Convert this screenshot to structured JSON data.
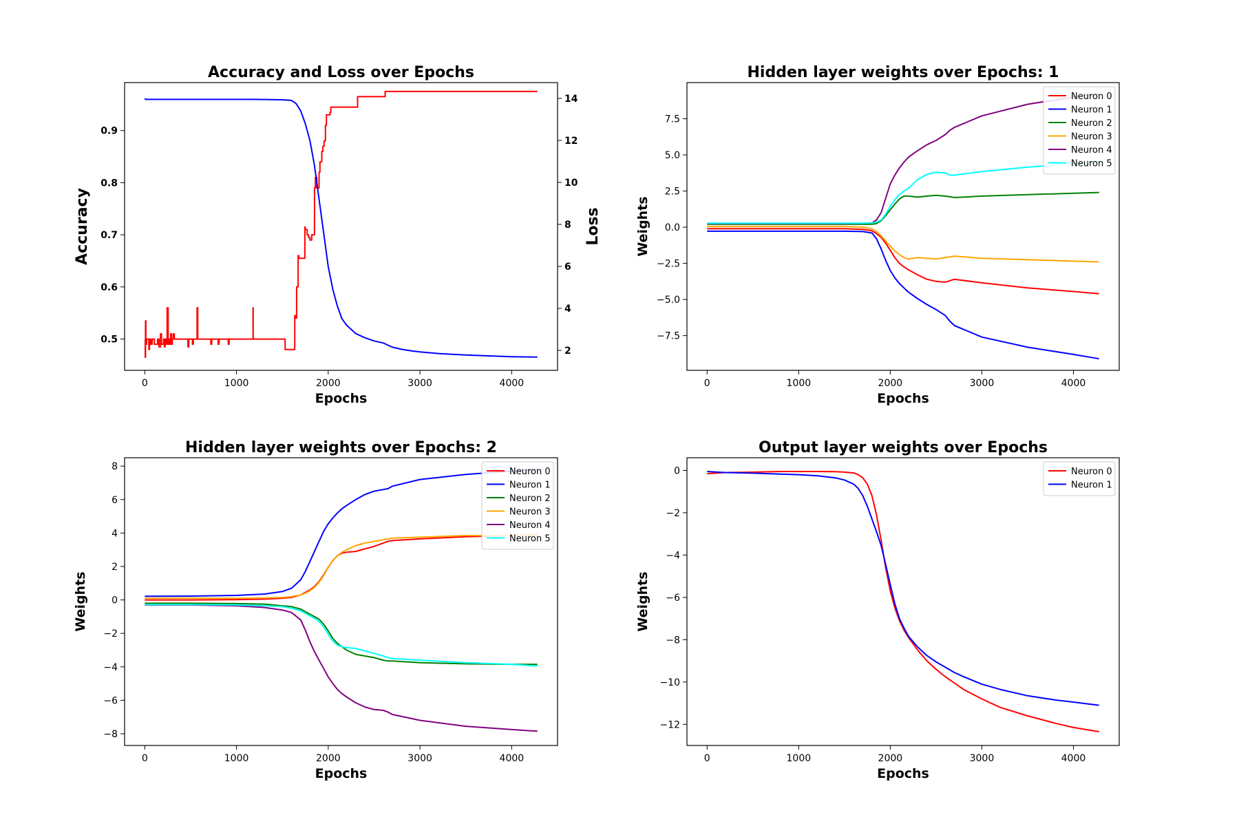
{
  "chart_data": [
    {
      "type": "line",
      "title": "Accuracy and Loss over Epochs",
      "xlabel": "Epochs",
      "ylabel": "Accuracy",
      "ylabel_right": "Loss",
      "xlim": [
        -220,
        4500
      ],
      "ylim": [
        0.44,
        0.992
      ],
      "ylim_right": [
        1.05,
        14.75
      ],
      "xticks": [
        0,
        1000,
        2000,
        3000,
        4000
      ],
      "yticks": [
        0.5,
        0.6,
        0.7,
        0.8,
        0.9
      ],
      "yticks_right": [
        2,
        4,
        6,
        8,
        10,
        12,
        14
      ],
      "grid": false,
      "legend": "none",
      "colors": {
        "left_axis": "#ff0000",
        "right_axis": "#0000ff"
      },
      "series": [
        {
          "name": "Accuracy",
          "axis": "left",
          "color": "#ff0000",
          "step": true,
          "x": [
            0,
            5,
            8,
            12,
            20,
            45,
            52,
            65,
            80,
            105,
            140,
            155,
            172,
            182,
            205,
            214,
            222,
            232,
            244,
            255,
            265,
            278,
            282,
            290,
            300,
            310,
            322,
            470,
            480,
            520,
            530,
            570,
            578,
            592,
            720,
            730,
            800,
            810,
            910,
            920,
            1180,
            1182,
            1188,
            1195,
            1530,
            1535,
            1635,
            1642,
            1655,
            1672,
            1680,
            1745,
            1750,
            1770,
            1785,
            1800,
            1820,
            1850,
            1860,
            1875,
            1900,
            1910,
            1930,
            1942,
            1955,
            1970,
            1980,
            2020,
            2028,
            2068,
            2080,
            2320,
            2330,
            2620,
            2630,
            4280
          ],
          "values": [
            0.5,
            0.465,
            0.535,
            0.49,
            0.5,
            0.48,
            0.5,
            0.49,
            0.5,
            0.49,
            0.5,
            0.485,
            0.51,
            0.49,
            0.5,
            0.485,
            0.5,
            0.49,
            0.56,
            0.49,
            0.5,
            0.49,
            0.51,
            0.49,
            0.5,
            0.51,
            0.5,
            0.485,
            0.5,
            0.49,
            0.5,
            0.56,
            0.5,
            0.5,
            0.49,
            0.5,
            0.49,
            0.5,
            0.49,
            0.5,
            0.56,
            0.5,
            0.5,
            0.5,
            0.48,
            0.48,
            0.545,
            0.54,
            0.6,
            0.66,
            0.655,
            0.715,
            0.71,
            0.7,
            0.695,
            0.69,
            0.7,
            0.79,
            0.81,
            0.79,
            0.82,
            0.84,
            0.86,
            0.87,
            0.88,
            0.91,
            0.93,
            0.935,
            0.945,
            0.945,
            0.945,
            0.965,
            0.965,
            0.975,
            0.975,
            0.975
          ]
        },
        {
          "name": "Loss",
          "axis": "right",
          "color": "#0000ff",
          "x": [
            0,
            10,
            30,
            300,
            800,
            1200,
            1500,
            1600,
            1650,
            1700,
            1750,
            1800,
            1850,
            1900,
            1950,
            2000,
            2050,
            2100,
            2150,
            2200,
            2300,
            2400,
            2500,
            2600,
            2650,
            2700,
            2800,
            2900,
            3000,
            3200,
            3500,
            3800,
            4000,
            4280
          ],
          "values": [
            14.0,
            13.95,
            13.95,
            13.95,
            13.95,
            13.95,
            13.93,
            13.9,
            13.75,
            13.4,
            12.8,
            12.0,
            10.8,
            9.2,
            7.6,
            6.0,
            4.9,
            4.1,
            3.5,
            3.2,
            2.8,
            2.6,
            2.45,
            2.35,
            2.25,
            2.15,
            2.05,
            1.98,
            1.93,
            1.85,
            1.78,
            1.73,
            1.7,
            1.68
          ]
        }
      ]
    },
    {
      "type": "line",
      "title": "Hidden layer weights over Epochs: 1",
      "xlabel": "Epochs",
      "ylabel": "Weights",
      "xlim": [
        -220,
        4500
      ],
      "ylim": [
        -9.9,
        10.0
      ],
      "xticks": [
        0,
        1000,
        2000,
        3000,
        4000
      ],
      "yticks": [
        -7.5,
        -5.0,
        -2.5,
        0.0,
        2.5,
        5.0,
        7.5
      ],
      "ytick_labels": [
        "−7.5",
        "−5.0",
        "−2.5",
        "0.0",
        "2.5",
        "5.0",
        "7.5"
      ],
      "grid": false,
      "legend": "top-right",
      "x": [
        0,
        1000,
        1500,
        1700,
        1800,
        1850,
        1900,
        1950,
        2000,
        2050,
        2100,
        2150,
        2200,
        2300,
        2400,
        2500,
        2600,
        2650,
        2700,
        3000,
        3500,
        4000,
        4280
      ],
      "series": [
        {
          "name": "Neuron 0",
          "color": "#ff0000",
          "values": [
            -0.1,
            -0.1,
            -0.1,
            -0.15,
            -0.25,
            -0.45,
            -0.7,
            -1.1,
            -1.6,
            -2.1,
            -2.5,
            -2.75,
            -2.95,
            -3.3,
            -3.6,
            -3.75,
            -3.8,
            -3.7,
            -3.6,
            -3.85,
            -4.2,
            -4.45,
            -4.6
          ]
        },
        {
          "name": "Neuron 1",
          "color": "#0000ff",
          "values": [
            -0.28,
            -0.28,
            -0.28,
            -0.3,
            -0.4,
            -0.8,
            -1.5,
            -2.3,
            -3.0,
            -3.5,
            -3.9,
            -4.2,
            -4.5,
            -4.95,
            -5.35,
            -5.7,
            -6.1,
            -6.5,
            -6.8,
            -7.6,
            -8.3,
            -8.8,
            -9.1
          ]
        },
        {
          "name": "Neuron 2",
          "color": "#008000",
          "values": [
            0.2,
            0.2,
            0.2,
            0.2,
            0.2,
            0.25,
            0.45,
            0.8,
            1.2,
            1.6,
            1.95,
            2.15,
            2.15,
            2.08,
            2.15,
            2.2,
            2.15,
            2.1,
            2.05,
            2.15,
            2.25,
            2.35,
            2.4
          ]
        },
        {
          "name": "Neuron 3",
          "color": "#ffa500",
          "values": [
            0.05,
            0.05,
            0.05,
            0.0,
            -0.1,
            -0.3,
            -0.6,
            -0.95,
            -1.3,
            -1.65,
            -1.9,
            -2.1,
            -2.2,
            -2.1,
            -2.15,
            -2.2,
            -2.1,
            -2.05,
            -2.0,
            -2.15,
            -2.25,
            -2.35,
            -2.4
          ]
        },
        {
          "name": "Neuron 4",
          "color": "#800080",
          "values": [
            0.25,
            0.25,
            0.25,
            0.27,
            0.3,
            0.5,
            1.0,
            2.0,
            3.0,
            3.6,
            4.1,
            4.5,
            4.85,
            5.3,
            5.7,
            6.0,
            6.4,
            6.7,
            6.9,
            7.7,
            8.5,
            9.0,
            9.2
          ]
        },
        {
          "name": "Neuron 5",
          "color": "#00ffff",
          "values": [
            0.28,
            0.28,
            0.28,
            0.28,
            0.3,
            0.35,
            0.5,
            0.9,
            1.45,
            1.9,
            2.25,
            2.5,
            2.7,
            3.3,
            3.65,
            3.8,
            3.75,
            3.6,
            3.6,
            3.85,
            4.15,
            4.4,
            4.5
          ]
        }
      ]
    },
    {
      "type": "line",
      "title": "Hidden layer weights over Epochs: 2",
      "xlabel": "Epochs",
      "ylabel": "Weights",
      "xlim": [
        -220,
        4500
      ],
      "ylim": [
        -8.7,
        8.5
      ],
      "xticks": [
        0,
        1000,
        2000,
        3000,
        4000
      ],
      "yticks": [
        -8,
        -6,
        -4,
        -2,
        0,
        2,
        4,
        6,
        8
      ],
      "ytick_labels": [
        "−8",
        "−6",
        "−4",
        "−2",
        "0",
        "2",
        "4",
        "6",
        "8"
      ],
      "grid": false,
      "legend": "top-right",
      "x": [
        0,
        500,
        1000,
        1300,
        1500,
        1600,
        1700,
        1750,
        1800,
        1850,
        1900,
        1950,
        2000,
        2050,
        2100,
        2150,
        2200,
        2300,
        2400,
        2500,
        2600,
        2650,
        2700,
        3000,
        3500,
        4000,
        4280
      ],
      "series": [
        {
          "name": "Neuron 0",
          "color": "#ff0000",
          "values": [
            0.0,
            0.0,
            0.02,
            0.05,
            0.1,
            0.15,
            0.3,
            0.45,
            0.6,
            0.8,
            1.1,
            1.5,
            1.95,
            2.35,
            2.65,
            2.8,
            2.85,
            2.9,
            3.05,
            3.2,
            3.4,
            3.5,
            3.55,
            3.65,
            3.78,
            3.85,
            3.9
          ]
        },
        {
          "name": "Neuron 1",
          "color": "#0000ff",
          "values": [
            0.22,
            0.23,
            0.27,
            0.35,
            0.5,
            0.7,
            1.2,
            1.7,
            2.3,
            2.9,
            3.5,
            4.1,
            4.55,
            4.9,
            5.2,
            5.45,
            5.65,
            6.0,
            6.3,
            6.5,
            6.6,
            6.65,
            6.8,
            7.2,
            7.5,
            7.7,
            7.8
          ]
        },
        {
          "name": "Neuron 2",
          "color": "#008000",
          "values": [
            -0.2,
            -0.2,
            -0.22,
            -0.25,
            -0.35,
            -0.4,
            -0.55,
            -0.7,
            -0.85,
            -1.0,
            -1.15,
            -1.45,
            -1.85,
            -2.3,
            -2.6,
            -2.8,
            -3.0,
            -3.25,
            -3.35,
            -3.45,
            -3.6,
            -3.65,
            -3.65,
            -3.75,
            -3.82,
            -3.85,
            -3.85
          ]
        },
        {
          "name": "Neuron 3",
          "color": "#ffa500",
          "values": [
            0.1,
            0.1,
            0.1,
            0.12,
            0.15,
            0.2,
            0.3,
            0.4,
            0.55,
            0.75,
            1.05,
            1.45,
            1.95,
            2.35,
            2.65,
            2.85,
            3.0,
            3.25,
            3.4,
            3.5,
            3.6,
            3.65,
            3.7,
            3.75,
            3.85,
            3.85,
            3.85
          ]
        },
        {
          "name": "Neuron 4",
          "color": "#800080",
          "values": [
            -0.3,
            -0.3,
            -0.35,
            -0.45,
            -0.6,
            -0.75,
            -1.2,
            -1.8,
            -2.5,
            -3.1,
            -3.6,
            -4.1,
            -4.6,
            -5.0,
            -5.35,
            -5.6,
            -5.8,
            -6.15,
            -6.4,
            -6.55,
            -6.6,
            -6.7,
            -6.85,
            -7.2,
            -7.55,
            -7.75,
            -7.85
          ]
        },
        {
          "name": "Neuron 5",
          "color": "#00ffff",
          "values": [
            -0.28,
            -0.28,
            -0.3,
            -0.35,
            -0.4,
            -0.5,
            -0.65,
            -0.8,
            -0.95,
            -1.1,
            -1.3,
            -1.6,
            -2.05,
            -2.45,
            -2.7,
            -2.8,
            -2.85,
            -2.9,
            -3.05,
            -3.2,
            -3.35,
            -3.45,
            -3.5,
            -3.6,
            -3.75,
            -3.85,
            -3.95
          ]
        }
      ]
    },
    {
      "type": "line",
      "title": "Output layer weights over Epochs",
      "xlabel": "Epochs",
      "ylabel": "Weights",
      "xlim": [
        -220,
        4500
      ],
      "ylim": [
        -13.0,
        0.6
      ],
      "xticks": [
        0,
        1000,
        2000,
        3000,
        4000
      ],
      "yticks": [
        -12,
        -10,
        -8,
        -6,
        -4,
        -2,
        0
      ],
      "ytick_labels": [
        "−12",
        "−10",
        "−8",
        "−6",
        "−4",
        "−2",
        "0"
      ],
      "grid": false,
      "legend": "top-right",
      "x": [
        0,
        200,
        500,
        800,
        1000,
        1200,
        1400,
        1500,
        1600,
        1650,
        1700,
        1750,
        1800,
        1850,
        1900,
        1950,
        2000,
        2050,
        2100,
        2150,
        2200,
        2300,
        2400,
        2500,
        2600,
        2700,
        2800,
        3000,
        3200,
        3500,
        3800,
        4000,
        4280
      ],
      "series": [
        {
          "name": "Neuron 0",
          "color": "#ff0000",
          "values": [
            -0.15,
            -0.1,
            -0.08,
            -0.05,
            -0.05,
            -0.05,
            -0.06,
            -0.08,
            -0.12,
            -0.2,
            -0.35,
            -0.65,
            -1.2,
            -2.1,
            -3.3,
            -4.6,
            -5.7,
            -6.5,
            -7.1,
            -7.55,
            -7.9,
            -8.5,
            -9.0,
            -9.4,
            -9.75,
            -10.05,
            -10.35,
            -10.8,
            -11.2,
            -11.6,
            -11.95,
            -12.15,
            -12.35
          ]
        },
        {
          "name": "Neuron 1",
          "color": "#0000ff",
          "values": [
            -0.05,
            -0.1,
            -0.13,
            -0.17,
            -0.2,
            -0.25,
            -0.35,
            -0.45,
            -0.65,
            -0.85,
            -1.2,
            -1.7,
            -2.3,
            -2.9,
            -3.55,
            -4.45,
            -5.4,
            -6.3,
            -7.0,
            -7.45,
            -7.85,
            -8.35,
            -8.75,
            -9.05,
            -9.3,
            -9.55,
            -9.75,
            -10.1,
            -10.35,
            -10.65,
            -10.85,
            -10.95,
            -11.1
          ]
        }
      ]
    }
  ]
}
